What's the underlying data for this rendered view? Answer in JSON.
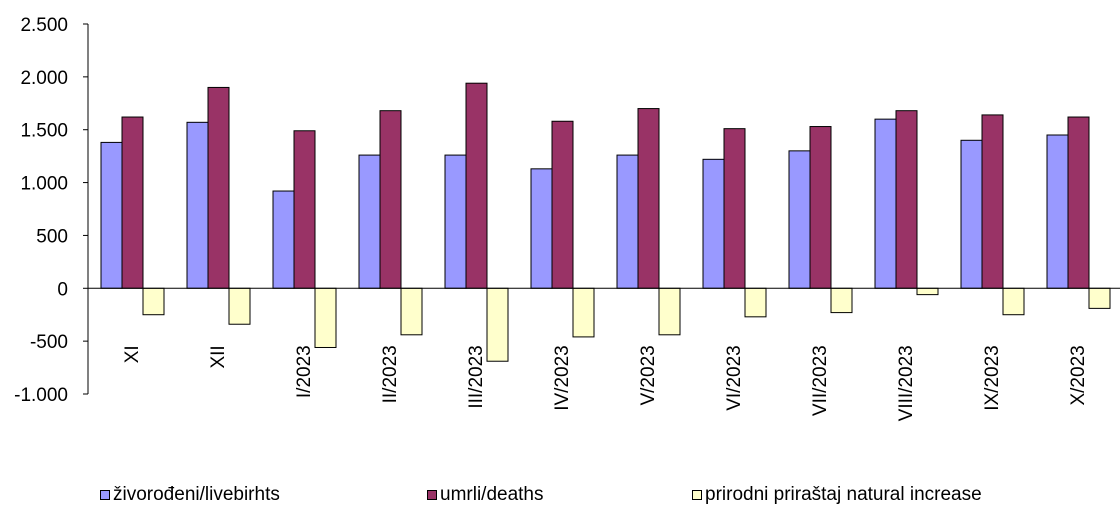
{
  "chart_data": {
    "type": "bar",
    "title": "",
    "xlabel": "",
    "ylabel": "",
    "ylim": [
      -1000,
      2500
    ],
    "yticks": [
      -1000,
      -500,
      0,
      500,
      1000,
      1500,
      2000,
      2500
    ],
    "ytick_labels": [
      "-1.000",
      "-500",
      "0",
      "500",
      "1.000",
      "1.500",
      "2.000",
      "2.500"
    ],
    "categories": [
      "XI",
      "XII",
      "I/2023",
      "II/2023",
      "III/2023",
      "IV/2023",
      "V/2023",
      "VI/2023",
      "VII/2023",
      "VIII/2023",
      "IX/2023",
      "X/2023"
    ],
    "series": [
      {
        "name": "živorođeni/livebirhts",
        "color": "#9999ff",
        "values": [
          1380,
          1570,
          920,
          1260,
          1260,
          1130,
          1260,
          1220,
          1300,
          1600,
          1400,
          1450
        ]
      },
      {
        "name": "umrli/deaths",
        "color": "#993366",
        "values": [
          1620,
          1900,
          1490,
          1680,
          1940,
          1580,
          1700,
          1510,
          1530,
          1680,
          1640,
          1620
        ]
      },
      {
        "name": "prirodni priraštaj natural increase",
        "color": "#ffffcc",
        "values": [
          -250,
          -340,
          -560,
          -440,
          -690,
          -460,
          -440,
          -270,
          -230,
          -60,
          -250,
          -190
        ]
      }
    ],
    "grid": false,
    "legend_position": "bottom"
  }
}
